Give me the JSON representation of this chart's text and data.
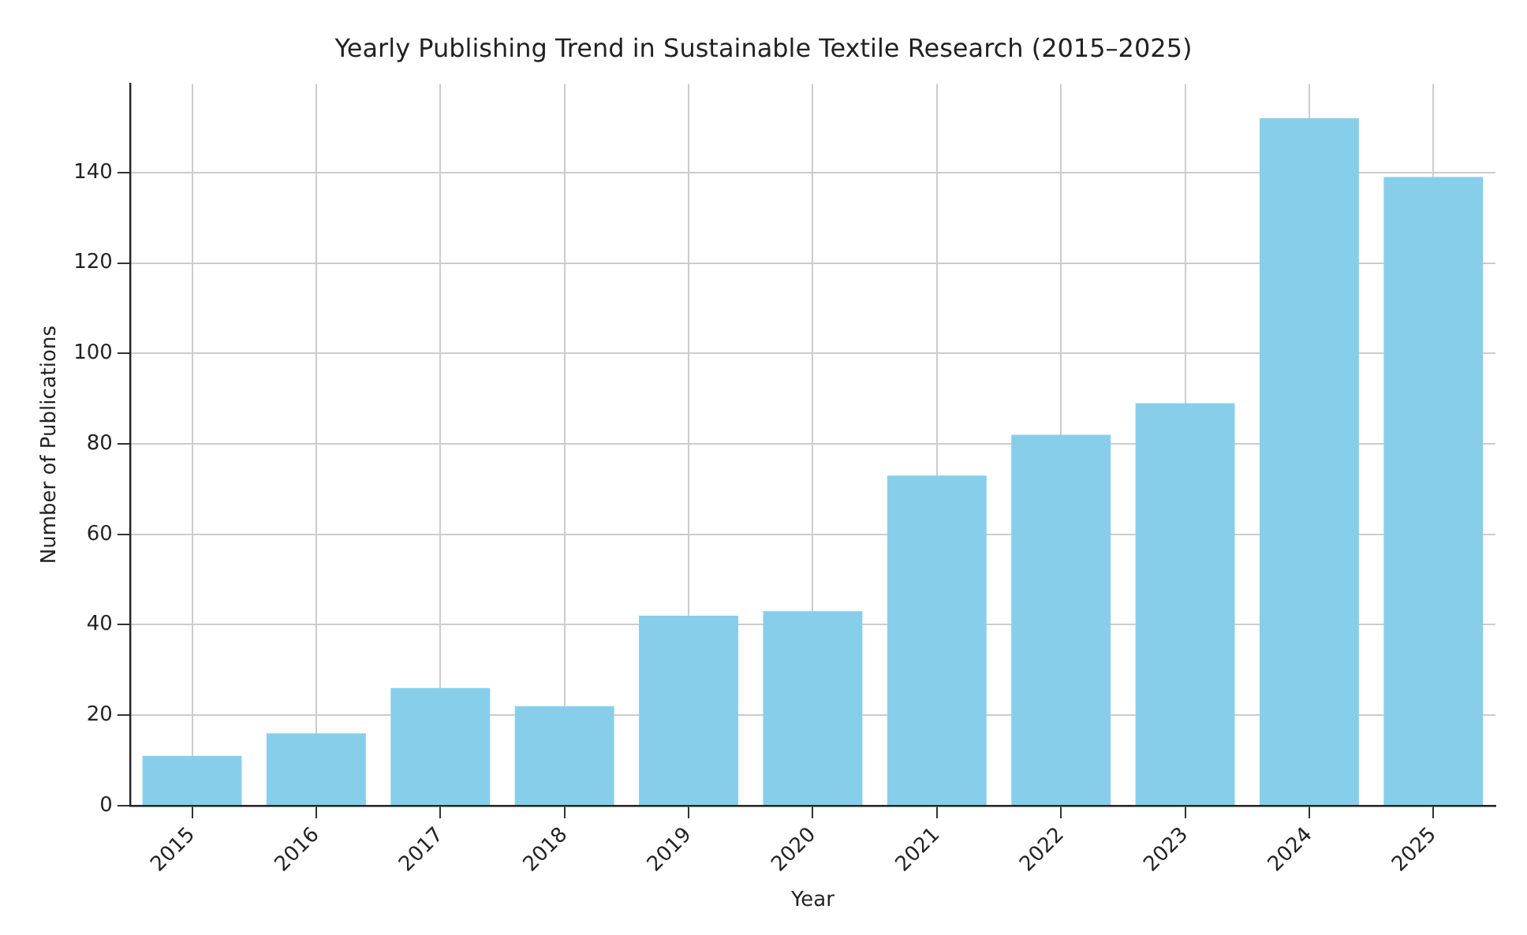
{
  "chart_data": {
    "type": "bar",
    "title": "Yearly Publishing Trend in Sustainable Textile Research (2015–2025)",
    "xlabel": "Year",
    "ylabel": "Number of Publications",
    "categories": [
      "2015",
      "2016",
      "2017",
      "2018",
      "2019",
      "2020",
      "2021",
      "2022",
      "2023",
      "2024",
      "2025"
    ],
    "values": [
      11,
      16,
      26,
      22,
      42,
      43,
      73,
      82,
      89,
      152,
      139
    ],
    "color": "#87ceeb",
    "ylim": [
      0,
      159.6
    ],
    "yticks": [
      0,
      20,
      40,
      60,
      80,
      100,
      120,
      140
    ],
    "grid": true
  }
}
